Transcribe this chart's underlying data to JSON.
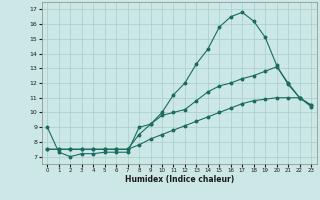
{
  "xlabel": "Humidex (Indice chaleur)",
  "background_color": "#cce8e6",
  "grid_color": "#aaccca",
  "line_color": "#1a6b60",
  "xlim": [
    -0.5,
    23.5
  ],
  "ylim": [
    6.5,
    17.5
  ],
  "xticks": [
    0,
    1,
    2,
    3,
    4,
    5,
    6,
    7,
    8,
    9,
    10,
    11,
    12,
    13,
    14,
    15,
    16,
    17,
    18,
    19,
    20,
    21,
    22,
    23
  ],
  "yticks": [
    7,
    8,
    9,
    10,
    11,
    12,
    13,
    14,
    15,
    16,
    17
  ],
  "curve1_x": [
    0,
    1,
    2,
    3,
    4,
    5,
    6,
    7,
    8,
    9,
    10,
    11,
    12,
    13,
    14,
    15,
    16,
    17,
    18,
    19,
    20,
    21,
    22,
    23
  ],
  "curve1_y": [
    9.0,
    7.3,
    7.0,
    7.2,
    7.2,
    7.3,
    7.3,
    7.3,
    9.0,
    9.2,
    10.0,
    11.2,
    12.0,
    13.3,
    14.3,
    15.8,
    16.5,
    16.8,
    16.2,
    15.1,
    13.2,
    11.9,
    11.0,
    10.4
  ],
  "curve2_x": [
    0,
    1,
    2,
    3,
    4,
    5,
    6,
    7,
    8,
    9,
    10,
    11,
    12,
    13,
    14,
    15,
    16,
    17,
    18,
    19,
    20,
    21,
    22,
    23
  ],
  "curve2_y": [
    7.5,
    7.5,
    7.5,
    7.5,
    7.5,
    7.5,
    7.5,
    7.5,
    7.8,
    8.2,
    8.5,
    8.8,
    9.1,
    9.4,
    9.7,
    10.0,
    10.3,
    10.6,
    10.8,
    10.9,
    11.0,
    11.0,
    11.0,
    10.5
  ],
  "curve3_x": [
    0,
    1,
    2,
    3,
    4,
    5,
    6,
    7,
    8,
    9,
    10,
    11,
    12,
    13,
    14,
    15,
    16,
    17,
    18,
    19,
    20,
    21,
    22,
    23
  ],
  "curve3_y": [
    7.5,
    7.5,
    7.5,
    7.5,
    7.5,
    7.5,
    7.5,
    7.5,
    8.5,
    9.2,
    9.8,
    10.0,
    10.2,
    10.8,
    11.4,
    11.8,
    12.0,
    12.3,
    12.5,
    12.8,
    13.1,
    12.0,
    11.0,
    10.5
  ]
}
